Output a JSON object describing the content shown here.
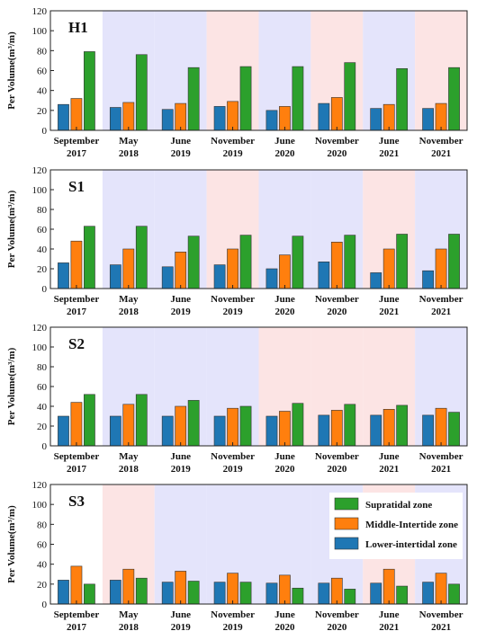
{
  "colors": {
    "supratidal": "#2ca02c",
    "middle": "#ff7f0e",
    "lower": "#1f77b4",
    "band_blue": "#e4e4fb",
    "band_pink": "#fce4e4"
  },
  "chart_data": [
    {
      "type": "bar",
      "title": "H1",
      "ylabel": "Per Volume(m³/m)",
      "ylim": [
        0,
        120
      ],
      "yticks": [
        0,
        20,
        40,
        60,
        80,
        100,
        120
      ],
      "categories": [
        [
          "September",
          "2017"
        ],
        [
          "May",
          "2018"
        ],
        [
          "June",
          "2019"
        ],
        [
          "November",
          "2019"
        ],
        [
          "June",
          "2020"
        ],
        [
          "November",
          "2020"
        ],
        [
          "June",
          "2021"
        ],
        [
          "November",
          "2021"
        ]
      ],
      "bands": [
        "none",
        "blue",
        "blue",
        "pink",
        "blue",
        "pink",
        "blue",
        "pink"
      ],
      "series": [
        {
          "key": "lower",
          "values": [
            26,
            23,
            21,
            24,
            20,
            27,
            22,
            22
          ]
        },
        {
          "key": "middle",
          "values": [
            32,
            28,
            27,
            29,
            24,
            33,
            26,
            27
          ]
        },
        {
          "key": "supratidal",
          "values": [
            79,
            76,
            63,
            64,
            64,
            68,
            62,
            63
          ]
        }
      ]
    },
    {
      "type": "bar",
      "title": "S1",
      "ylabel": "Per Volume(m³/m)",
      "ylim": [
        0,
        120
      ],
      "yticks": [
        0,
        20,
        40,
        60,
        80,
        100,
        120
      ],
      "categories": [
        [
          "September",
          "2017"
        ],
        [
          "May",
          "2018"
        ],
        [
          "June",
          "2019"
        ],
        [
          "November",
          "2019"
        ],
        [
          "June",
          "2020"
        ],
        [
          "November",
          "2020"
        ],
        [
          "June",
          "2021"
        ],
        [
          "November",
          "2021"
        ]
      ],
      "bands": [
        "none",
        "blue",
        "blue",
        "pink",
        "blue",
        "blue",
        "pink",
        "blue"
      ],
      "series": [
        {
          "key": "lower",
          "values": [
            26,
            24,
            22,
            24,
            20,
            27,
            16,
            18
          ]
        },
        {
          "key": "middle",
          "values": [
            48,
            40,
            37,
            40,
            34,
            47,
            40,
            40
          ]
        },
        {
          "key": "supratidal",
          "values": [
            63,
            63,
            53,
            54,
            53,
            54,
            55,
            55
          ]
        }
      ]
    },
    {
      "type": "bar",
      "title": "S2",
      "ylabel": "Per Volume(m³/m)",
      "ylim": [
        0,
        120
      ],
      "yticks": [
        0,
        20,
        40,
        60,
        80,
        100,
        120
      ],
      "categories": [
        [
          "September",
          "2017"
        ],
        [
          "May",
          "2018"
        ],
        [
          "June",
          "2019"
        ],
        [
          "November",
          "2019"
        ],
        [
          "June",
          "2020"
        ],
        [
          "November",
          "2020"
        ],
        [
          "June",
          "2021"
        ],
        [
          "November",
          "2021"
        ]
      ],
      "bands": [
        "none",
        "blue",
        "blue",
        "blue",
        "pink",
        "pink",
        "pink",
        "blue"
      ],
      "series": [
        {
          "key": "lower",
          "values": [
            30,
            30,
            30,
            30,
            30,
            31,
            31,
            31
          ]
        },
        {
          "key": "middle",
          "values": [
            44,
            42,
            40,
            38,
            35,
            36,
            37,
            38
          ]
        },
        {
          "key": "supratidal",
          "values": [
            52,
            52,
            46,
            40,
            43,
            42,
            41,
            34
          ]
        }
      ]
    },
    {
      "type": "bar",
      "title": "S3",
      "ylabel": "Per Volume(m³/m)",
      "ylim": [
        0,
        120
      ],
      "yticks": [
        0,
        20,
        40,
        60,
        80,
        100,
        120
      ],
      "categories": [
        [
          "September",
          "2017"
        ],
        [
          "May",
          "2018"
        ],
        [
          "June",
          "2019"
        ],
        [
          "November",
          "2019"
        ],
        [
          "June",
          "2020"
        ],
        [
          "November",
          "2020"
        ],
        [
          "June",
          "2021"
        ],
        [
          "November",
          "2021"
        ]
      ],
      "bands": [
        "none",
        "pink",
        "blue",
        "blue",
        "blue",
        "blue",
        "pink",
        "blue"
      ],
      "series": [
        {
          "key": "lower",
          "values": [
            24,
            24,
            22,
            22,
            21,
            21,
            21,
            22
          ]
        },
        {
          "key": "middle",
          "values": [
            38,
            35,
            33,
            31,
            29,
            26,
            35,
            31
          ]
        },
        {
          "key": "supratidal",
          "values": [
            20,
            26,
            23,
            22,
            16,
            15,
            18,
            20
          ]
        }
      ],
      "legend": {
        "placement": "top-right",
        "entries": [
          {
            "key": "supratidal",
            "label": "Supratidal zone"
          },
          {
            "key": "middle",
            "label": "Middle-Intertide zone"
          },
          {
            "key": "lower",
            "label": "Lower-intertidal zone"
          }
        ]
      }
    }
  ]
}
